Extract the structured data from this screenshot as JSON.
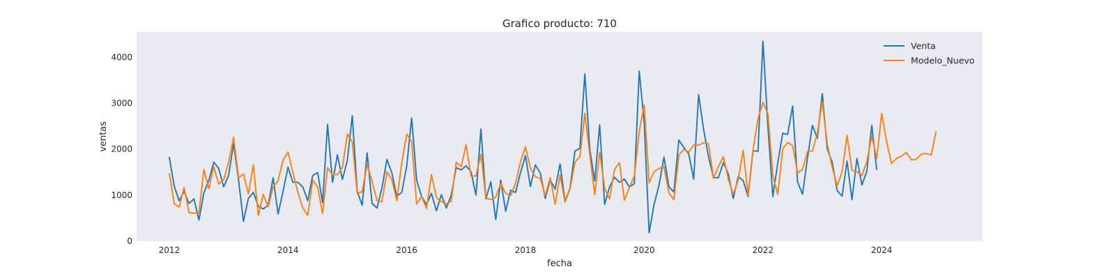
{
  "chart_data": {
    "type": "line",
    "title": "Grafico producto: 710",
    "xlabel": "fecha",
    "ylabel": "ventas",
    "xlim": [
      2011.45,
      2025.7
    ],
    "ylim": [
      0,
      4550
    ],
    "x_ticks": [
      2012,
      2014,
      2016,
      2018,
      2020,
      2022,
      2024
    ],
    "x_tick_labels": [
      "2012",
      "2014",
      "2016",
      "2018",
      "2020",
      "2022",
      "2024"
    ],
    "y_ticks": [
      0,
      1000,
      2000,
      3000,
      4000
    ],
    "y_tick_labels": [
      "0",
      "1000",
      "2000",
      "3000",
      "4000"
    ],
    "legend_position": "top-right",
    "grid": false,
    "start_date": "2012-01",
    "frequency": "monthly",
    "series": [
      {
        "name": "Venta",
        "color": "#1f77b4",
        "values": [
          1830,
          1200,
          880,
          1080,
          820,
          920,
          460,
          1050,
          1320,
          1720,
          1580,
          1180,
          1430,
          2120,
          1340,
          430,
          930,
          1060,
          760,
          700,
          780,
          1380,
          590,
          1080,
          1610,
          1280,
          1280,
          1180,
          880,
          1430,
          1490,
          840,
          2540,
          1280,
          1880,
          1340,
          1760,
          2730,
          1080,
          780,
          1920,
          820,
          720,
          1160,
          1780,
          1480,
          980,
          1060,
          1630,
          2680,
          1330,
          970,
          800,
          1040,
          660,
          1010,
          720,
          1000,
          1600,
          1550,
          1640,
          1510,
          1000,
          2440,
          920,
          1290,
          470,
          1330,
          650,
          1110,
          1060,
          1490,
          1860,
          1190,
          1660,
          1480,
          930,
          1330,
          1130,
          1680,
          870,
          1150,
          1960,
          2020,
          3640,
          2000,
          1310,
          2530,
          800,
          1180,
          1390,
          1280,
          1350,
          1180,
          1250,
          3700,
          2580,
          180,
          800,
          1220,
          1830,
          1180,
          1070,
          2200,
          2040,
          1900,
          1350,
          3190,
          2440,
          1840,
          1380,
          1380,
          1710,
          1460,
          930,
          1400,
          1320,
          970,
          1970,
          1950,
          4350,
          2500,
          970,
          1700,
          2350,
          2320,
          2940,
          1290,
          1020,
          1800,
          2520,
          2240,
          3210,
          2000,
          1720,
          1100,
          980,
          1740,
          900,
          1800,
          1220,
          1520,
          2520,
          1550
        ]
      },
      {
        "name": "Modelo_Nuevo",
        "color": "#ff7f0e",
        "values": [
          1480,
          820,
          740,
          1170,
          620,
          610,
          610,
          1560,
          1140,
          1620,
          1240,
          1330,
          1720,
          2260,
          1380,
          1460,
          1030,
          1660,
          560,
          1020,
          750,
          1180,
          1320,
          1760,
          1940,
          1490,
          1060,
          720,
          560,
          1330,
          1180,
          600,
          1600,
          1440,
          1450,
          1600,
          2330,
          2160,
          1040,
          1080,
          1670,
          1300,
          880,
          860,
          1510,
          1330,
          880,
          1710,
          2330,
          2160,
          810,
          970,
          710,
          1450,
          950,
          860,
          810,
          870,
          1720,
          1620,
          2100,
          1410,
          1420,
          1890,
          940,
          900,
          960,
          1260,
          1040,
          990,
          1260,
          1730,
          2050,
          1590,
          1400,
          1370,
          990,
          1380,
          800,
          1440,
          850,
          1130,
          1720,
          1840,
          2780,
          1880,
          1010,
          1940,
          1150,
          920,
          1560,
          1710,
          890,
          1170,
          1410,
          2390,
          2960,
          1270,
          1510,
          1580,
          1620,
          1050,
          900,
          1870,
          2000,
          1940,
          2090,
          2090,
          2140,
          2120,
          1370,
          1620,
          1840,
          1350,
          1020,
          1330,
          1980,
          1000,
          1990,
          2660,
          3020,
          2770,
          1430,
          1020,
          2010,
          2150,
          2080,
          1480,
          1560,
          1950,
          1960,
          2350,
          3040,
          2110,
          1610,
          1200,
          1510,
          2300,
          1540,
          1510,
          1430,
          1730,
          2290,
          1800,
          2780,
          2160,
          1690,
          1800,
          1850,
          1930,
          1770,
          1780,
          1890,
          1910,
          1870,
          2390
        ]
      }
    ]
  }
}
